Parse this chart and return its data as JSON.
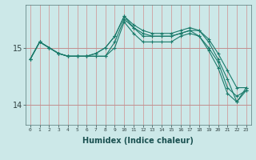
{
  "xlabel": "Humidex (Indice chaleur)",
  "ylabel": "",
  "background_color": "#cce8e8",
  "line_color": "#1a7a6a",
  "yticks": [
    14,
    15
  ],
  "xlim": [
    -0.5,
    23.5
  ],
  "ylim": [
    13.65,
    15.75
  ],
  "hours": [
    0,
    1,
    2,
    3,
    4,
    5,
    6,
    7,
    8,
    9,
    10,
    11,
    12,
    13,
    14,
    15,
    16,
    17,
    18,
    19,
    20,
    21,
    22,
    23
  ],
  "lines": [
    [
      14.8,
      15.1,
      15.0,
      14.9,
      14.85,
      14.85,
      14.85,
      14.85,
      14.85,
      15.1,
      15.5,
      15.35,
      15.2,
      15.2,
      15.2,
      15.2,
      15.25,
      15.3,
      15.3,
      15.1,
      14.8,
      14.45,
      14.05,
      14.3
    ],
    [
      14.8,
      15.1,
      15.0,
      14.9,
      14.85,
      14.85,
      14.85,
      14.9,
      15.0,
      15.2,
      15.55,
      15.4,
      15.3,
      15.25,
      15.25,
      15.25,
      15.3,
      15.35,
      15.3,
      15.15,
      14.9,
      14.6,
      14.3,
      14.3
    ],
    [
      14.8,
      15.1,
      15.0,
      14.9,
      14.85,
      14.85,
      14.85,
      14.9,
      15.0,
      15.2,
      15.55,
      15.35,
      15.25,
      15.2,
      15.2,
      15.2,
      15.25,
      15.3,
      15.2,
      15.0,
      14.75,
      14.3,
      14.15,
      14.25
    ],
    [
      14.8,
      15.1,
      15.0,
      14.9,
      14.85,
      14.85,
      14.85,
      14.85,
      14.85,
      15.0,
      15.45,
      15.25,
      15.1,
      15.1,
      15.1,
      15.1,
      15.2,
      15.25,
      15.2,
      14.95,
      14.65,
      14.2,
      14.05,
      14.25
    ]
  ]
}
